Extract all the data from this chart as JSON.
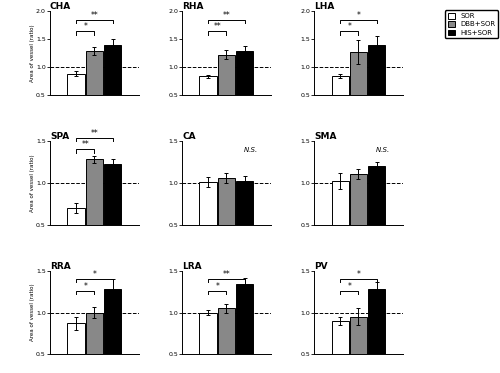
{
  "panels": [
    {
      "title": "CHA",
      "values": [
        0.88,
        1.28,
        1.4
      ],
      "errors": [
        0.05,
        0.07,
        0.1
      ],
      "ylim": [
        0.5,
        2.0
      ],
      "yticks": [
        0.5,
        1.0,
        1.5,
        2.0
      ],
      "significance": [
        {
          "bars": [
            0,
            1
          ],
          "label": "*"
        },
        {
          "bars": [
            0,
            2
          ],
          "label": "**"
        }
      ],
      "ns_label": null
    },
    {
      "title": "RHA",
      "values": [
        0.83,
        1.22,
        1.28
      ],
      "errors": [
        0.03,
        0.08,
        0.09
      ],
      "ylim": [
        0.5,
        2.0
      ],
      "yticks": [
        0.5,
        1.0,
        1.5,
        2.0
      ],
      "significance": [
        {
          "bars": [
            0,
            1
          ],
          "label": "**"
        },
        {
          "bars": [
            0,
            2
          ],
          "label": "**"
        }
      ],
      "ns_label": null
    },
    {
      "title": "LHA",
      "values": [
        0.84,
        1.27,
        1.4
      ],
      "errors": [
        0.04,
        0.22,
        0.15
      ],
      "ylim": [
        0.5,
        2.0
      ],
      "yticks": [
        0.5,
        1.0,
        1.5,
        2.0
      ],
      "significance": [
        {
          "bars": [
            0,
            1
          ],
          "label": "*"
        },
        {
          "bars": [
            0,
            2
          ],
          "label": "*"
        }
      ],
      "ns_label": null
    },
    {
      "title": "SPA",
      "values": [
        0.7,
        1.28,
        1.22
      ],
      "errors": [
        0.06,
        0.04,
        0.06
      ],
      "ylim": [
        0.5,
        1.5
      ],
      "yticks": [
        0.5,
        1.0,
        1.5
      ],
      "significance": [
        {
          "bars": [
            0,
            1
          ],
          "label": "**"
        },
        {
          "bars": [
            0,
            2
          ],
          "label": "**"
        }
      ],
      "ns_label": null
    },
    {
      "title": "CA",
      "values": [
        1.01,
        1.06,
        1.02
      ],
      "errors": [
        0.06,
        0.06,
        0.06
      ],
      "ylim": [
        0.5,
        1.5
      ],
      "yticks": [
        0.5,
        1.0,
        1.5
      ],
      "significance": [],
      "ns_label": "N.S."
    },
    {
      "title": "SMA",
      "values": [
        1.02,
        1.1,
        1.2
      ],
      "errors": [
        0.1,
        0.06,
        0.05
      ],
      "ylim": [
        0.5,
        1.5
      ],
      "yticks": [
        0.5,
        1.0,
        1.5
      ],
      "significance": [],
      "ns_label": "N.S."
    },
    {
      "title": "RRA",
      "values": [
        0.87,
        1.0,
        1.28
      ],
      "errors": [
        0.08,
        0.06,
        0.12
      ],
      "ylim": [
        0.5,
        1.5
      ],
      "yticks": [
        0.5,
        1.0,
        1.5
      ],
      "significance": [
        {
          "bars": [
            0,
            1
          ],
          "label": "*"
        },
        {
          "bars": [
            0,
            2
          ],
          "label": "*"
        }
      ],
      "ns_label": null
    },
    {
      "title": "LRA",
      "values": [
        1.0,
        1.05,
        1.34
      ],
      "errors": [
        0.03,
        0.05,
        0.07
      ],
      "ylim": [
        0.5,
        1.5
      ],
      "yticks": [
        0.5,
        1.0,
        1.5
      ],
      "significance": [
        {
          "bars": [
            0,
            1
          ],
          "label": "*"
        },
        {
          "bars": [
            0,
            2
          ],
          "label": "**"
        }
      ],
      "ns_label": null
    },
    {
      "title": "PV",
      "values": [
        0.9,
        0.95,
        1.28
      ],
      "errors": [
        0.05,
        0.1,
        0.08
      ],
      "ylim": [
        0.5,
        1.5
      ],
      "yticks": [
        0.5,
        1.0,
        1.5
      ],
      "significance": [
        {
          "bars": [
            0,
            1
          ],
          "label": "*"
        },
        {
          "bars": [
            0,
            2
          ],
          "label": "*"
        }
      ],
      "ns_label": null
    }
  ],
  "bar_colors": [
    "white",
    "#888888",
    "black"
  ],
  "bar_edgecolor": "black",
  "bar_width": 0.22,
  "ylabel": "Area of vessel (ratio)",
  "legend_labels": [
    "SOR",
    "DBB+SOR",
    "HIS+SOR"
  ],
  "dashed_line_y": 1.0,
  "grid_rows": 3,
  "grid_cols": 3
}
